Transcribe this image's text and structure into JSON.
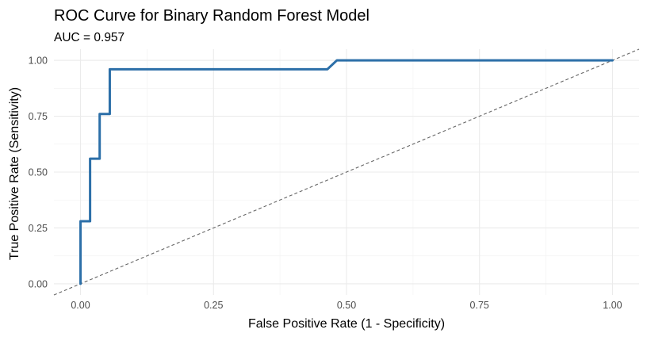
{
  "chart_data": {
    "type": "line",
    "title": "ROC Curve for Binary Random Forest Model",
    "subtitle": "AUC = 0.957",
    "xlabel": "False Positive Rate (1 - Specificity)",
    "ylabel": "True Positive Rate (Sensitivity)",
    "xlim": [
      -0.05,
      1.05
    ],
    "ylim": [
      -0.05,
      1.05
    ],
    "x_ticks": [
      0,
      0.25,
      0.5,
      0.75,
      1
    ],
    "x_tick_labels": [
      "0.00",
      "0.25",
      "0.50",
      "0.75",
      "1.00"
    ],
    "y_ticks": [
      0,
      0.25,
      0.5,
      0.75,
      1
    ],
    "y_tick_labels": [
      "0.00",
      "0.25",
      "0.50",
      "0.75",
      "1.00"
    ],
    "grid": true,
    "series": [
      {
        "color": "#2c6fa8",
        "x": [
          0,
          0,
          0.018,
          0.018,
          0.036,
          0.036,
          0.055,
          0.055,
          0.464,
          0.482,
          1.0
        ],
        "y": [
          0,
          0.28,
          0.28,
          0.56,
          0.56,
          0.76,
          0.76,
          0.96,
          0.96,
          1.0,
          1.0
        ]
      }
    ],
    "reference_line": {
      "color": "#666666",
      "style": "dashed",
      "x": [
        -0.05,
        1.05
      ],
      "y": [
        -0.05,
        1.05
      ]
    }
  }
}
